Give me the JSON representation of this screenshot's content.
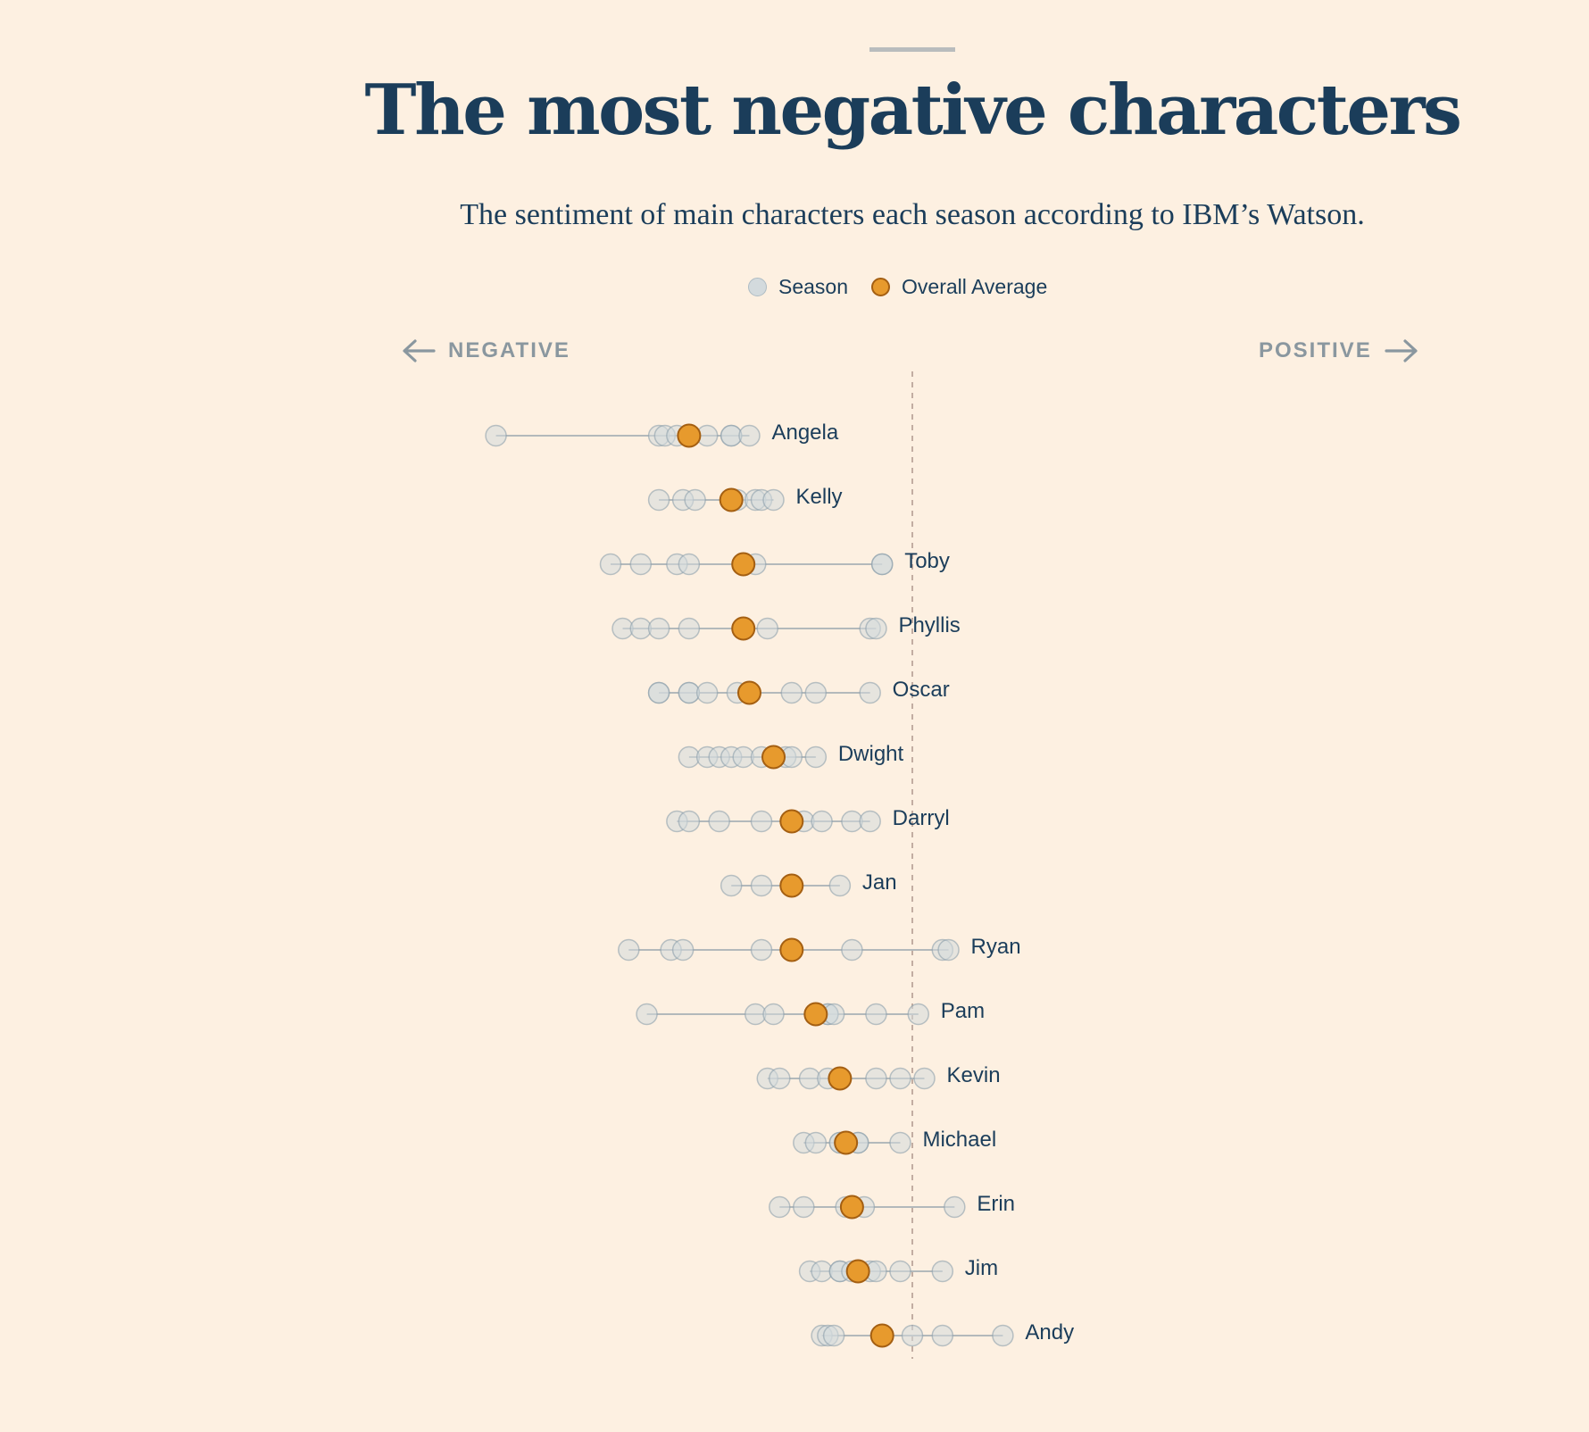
{
  "header": {
    "title": "The most negative characters",
    "subtitle": "The sentiment of main characters each season according to IBM’s Watson."
  },
  "legend": {
    "season_label": "Season",
    "average_label": "Overall Average"
  },
  "direction": {
    "negative_label": "NEGATIVE",
    "positive_label": "POSITIVE"
  },
  "colors": {
    "background": "#fdf0e1",
    "text": "#1b3d5a",
    "season_fill": "#d3dadd",
    "average_fill": "#e79a2d",
    "average_stroke": "#a45f12",
    "range_line": "#b3b9bb",
    "zero_line": "#c2ada2"
  },
  "chart_data": {
    "type": "dot-range",
    "title": "The most negative characters",
    "subtitle": "The sentiment of main characters each season according to IBM’s Watson.",
    "xlabel_left": "NEGATIVE",
    "xlabel_right": "POSITIVE",
    "x_neutral": 0,
    "xlim": [
      -0.72,
      0.45
    ],
    "series": [
      {
        "name": "Season"
      },
      {
        "name": "Overall Average"
      }
    ],
    "characters": [
      {
        "name": "Angela",
        "seasons": [
          -0.69,
          -0.42,
          -0.41,
          -0.39,
          -0.34,
          -0.3,
          -0.3,
          -0.27
        ],
        "average": -0.37
      },
      {
        "name": "Kelly",
        "seasons": [
          -0.42,
          -0.38,
          -0.36,
          -0.3,
          -0.29,
          -0.26,
          -0.25,
          -0.23
        ],
        "average": -0.3
      },
      {
        "name": "Toby",
        "seasons": [
          -0.5,
          -0.45,
          -0.39,
          -0.37,
          -0.26,
          -0.05,
          -0.05
        ],
        "average": -0.28
      },
      {
        "name": "Phyllis",
        "seasons": [
          -0.48,
          -0.45,
          -0.42,
          -0.37,
          -0.28,
          -0.24,
          -0.07,
          -0.06
        ],
        "average": -0.28
      },
      {
        "name": "Oscar",
        "seasons": [
          -0.42,
          -0.42,
          -0.37,
          -0.37,
          -0.34,
          -0.29,
          -0.2,
          -0.16,
          -0.07
        ],
        "average": -0.27
      },
      {
        "name": "Dwight",
        "seasons": [
          -0.37,
          -0.34,
          -0.32,
          -0.3,
          -0.28,
          -0.25,
          -0.21,
          -0.2,
          -0.16
        ],
        "average": -0.23
      },
      {
        "name": "Darryl",
        "seasons": [
          -0.39,
          -0.37,
          -0.32,
          -0.25,
          -0.18,
          -0.15,
          -0.1,
          -0.07
        ],
        "average": -0.2
      },
      {
        "name": "Jan",
        "seasons": [
          -0.3,
          -0.25,
          -0.2,
          -0.12
        ],
        "average": -0.2
      },
      {
        "name": "Ryan",
        "seasons": [
          -0.47,
          -0.4,
          -0.38,
          -0.25,
          -0.2,
          -0.1,
          0.05,
          0.06
        ],
        "average": -0.2
      },
      {
        "name": "Pam",
        "seasons": [
          -0.44,
          -0.26,
          -0.23,
          -0.14,
          -0.14,
          -0.13,
          -0.06,
          0.01
        ],
        "average": -0.16
      },
      {
        "name": "Kevin",
        "seasons": [
          -0.24,
          -0.22,
          -0.17,
          -0.14,
          -0.12,
          -0.06,
          -0.02,
          0.02
        ],
        "average": -0.12
      },
      {
        "name": "Michael",
        "seasons": [
          -0.18,
          -0.16,
          -0.12,
          -0.12,
          -0.09,
          -0.09,
          -0.02
        ],
        "average": -0.11
      },
      {
        "name": "Erin",
        "seasons": [
          -0.22,
          -0.18,
          -0.11,
          -0.08,
          0.07
        ],
        "average": -0.1
      },
      {
        "name": "Jim",
        "seasons": [
          -0.17,
          -0.15,
          -0.12,
          -0.12,
          -0.1,
          -0.07,
          -0.06,
          -0.02,
          0.05
        ],
        "average": -0.09
      },
      {
        "name": "Andy",
        "seasons": [
          -0.15,
          -0.14,
          -0.13,
          0.0,
          0.05,
          0.15
        ],
        "average": -0.05
      }
    ]
  }
}
